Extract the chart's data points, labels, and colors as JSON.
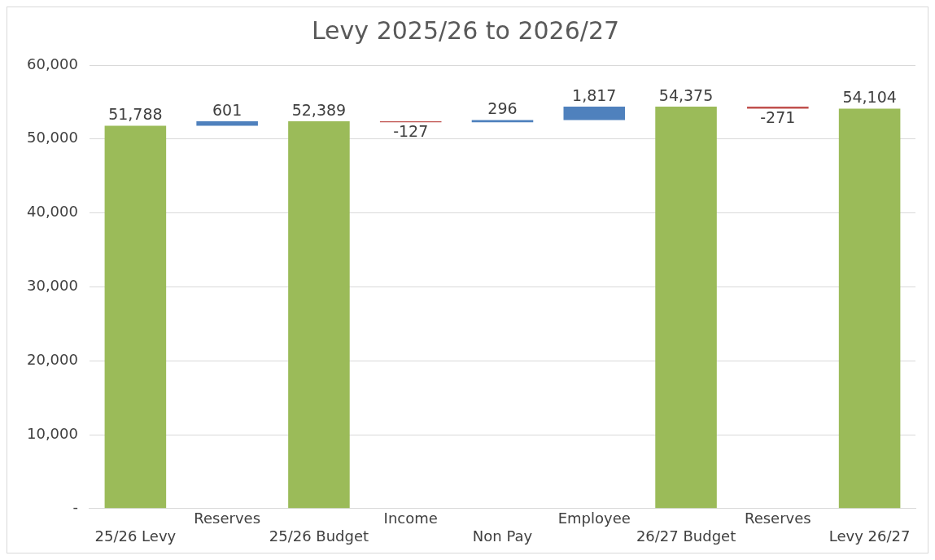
{
  "chart_data": {
    "type": "bar",
    "title": "Levy 2025/26 to 2026/27",
    "categories": [
      "25/26 Levy",
      "Reserves",
      "25/26 Budget",
      "Income",
      "Non Pay",
      "Employee",
      "26/27 Budget",
      "Reserves",
      "Levy 26/27"
    ],
    "values": [
      51788,
      601,
      52389,
      -127,
      296,
      1817,
      54375,
      -271,
      54104
    ],
    "base": [
      0,
      51788,
      0,
      52389,
      52262,
      52558,
      0,
      54375,
      0
    ],
    "colors": [
      "#9bbb59",
      "#4f81bd",
      "#9bbb59",
      "#c0504d",
      "#4f81bd",
      "#4f81bd",
      "#9bbb59",
      "#c0504d",
      "#9bbb59"
    ],
    "value_labels": [
      "51,788",
      "601",
      "52,389",
      "-127",
      "296",
      "1,817",
      "54,375",
      "-271",
      "54,104"
    ],
    "ylim": [
      0,
      60000
    ],
    "yticks": [
      {
        "value": 0,
        "label": "-"
      },
      {
        "value": 10000,
        "label": "10,000"
      },
      {
        "value": 20000,
        "label": "20,000"
      },
      {
        "value": 30000,
        "label": "30,000"
      },
      {
        "value": 40000,
        "label": "40,000"
      },
      {
        "value": 50000,
        "label": "50,000"
      },
      {
        "value": 60000,
        "label": "60,000"
      }
    ],
    "grid": "y",
    "legend": false
  }
}
